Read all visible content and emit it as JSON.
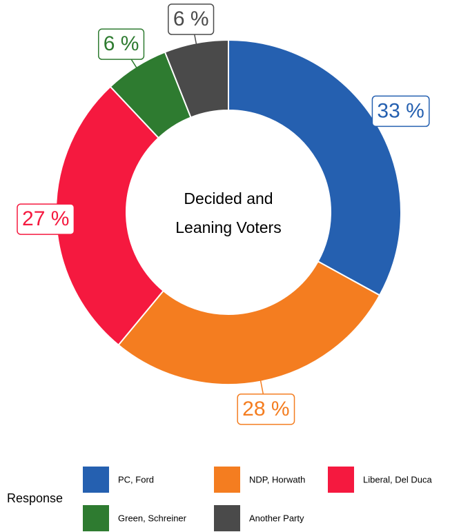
{
  "chart_data": {
    "type": "donut",
    "center_label": [
      "Decided and",
      "Leaning Voters"
    ],
    "legend_title": "Response",
    "categories": [
      "PC, Ford",
      "NDP, Horwath",
      "Liberal, Del Duca",
      "Green, Schreiner",
      "Another Party"
    ],
    "values": [
      33,
      28,
      27,
      6,
      6
    ],
    "value_labels": [
      "33 %",
      "28 %",
      "27 %",
      "6 %",
      "6 %"
    ],
    "colors": [
      "#2560b0",
      "#f47d20",
      "#f5193f",
      "#2e7b30",
      "#4a4a4a"
    ]
  }
}
